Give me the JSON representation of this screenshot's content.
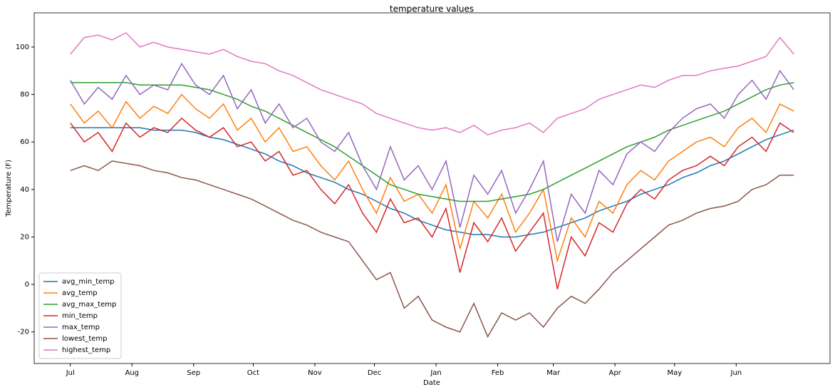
{
  "chart_data": {
    "type": "line",
    "title": "temperature values",
    "x_label": "Date",
    "y_label": "Temperature (F)",
    "x": [
      0,
      7,
      14,
      21,
      28,
      35,
      42,
      49,
      56,
      63,
      70,
      77,
      84,
      91,
      98,
      105,
      112,
      119,
      126,
      133,
      140,
      147,
      154,
      161,
      168,
      175,
      182,
      189,
      196,
      203,
      210,
      217,
      224,
      231,
      238,
      245,
      252,
      259,
      266,
      273,
      280,
      287,
      294,
      301,
      308,
      315,
      322,
      329,
      336,
      343,
      350,
      357,
      364
    ],
    "xlim": [
      -18.2,
      382.2
    ],
    "xticks": [
      {
        "value": 0,
        "label": "Jul"
      },
      {
        "value": 31,
        "label": "Aug"
      },
      {
        "value": 62,
        "label": "Sep"
      },
      {
        "value": 92,
        "label": "Oct"
      },
      {
        "value": 123,
        "label": "Nov"
      },
      {
        "value": 153,
        "label": "Dec"
      },
      {
        "value": 184,
        "label": "Jan"
      },
      {
        "value": 215,
        "label": "Feb"
      },
      {
        "value": 243,
        "label": "Mar"
      },
      {
        "value": 274,
        "label": "Apr"
      },
      {
        "value": 304,
        "label": "May"
      },
      {
        "value": 335,
        "label": "Jun"
      }
    ],
    "ylim": [
      -33.3,
      114.4
    ],
    "yticks": [
      -20,
      0,
      20,
      40,
      60,
      80,
      100
    ],
    "legend": "lower left",
    "series": [
      {
        "name": "avg_min_temp",
        "color": "#1f77b4",
        "values": [
          66,
          66,
          66,
          66,
          66,
          66,
          65,
          65,
          65,
          64,
          62,
          61,
          59,
          57,
          55,
          52,
          50,
          47,
          45,
          43,
          40,
          38,
          35,
          32,
          30,
          27,
          25,
          23,
          22,
          21,
          21,
          20,
          20,
          21,
          22,
          24,
          26,
          28,
          31,
          33,
          35,
          38,
          40,
          42,
          45,
          47,
          50,
          52,
          55,
          58,
          61,
          63,
          65
        ]
      },
      {
        "name": "avg_temp",
        "color": "#ff7f0e",
        "values": [
          76,
          68,
          73,
          66,
          77,
          70,
          75,
          72,
          80,
          74,
          70,
          76,
          65,
          70,
          60,
          66,
          56,
          58,
          50,
          44,
          52,
          40,
          30,
          45,
          35,
          38,
          30,
          42,
          15,
          35,
          28,
          38,
          22,
          30,
          40,
          10,
          28,
          20,
          35,
          30,
          42,
          48,
          44,
          52,
          56,
          60,
          62,
          58,
          66,
          70,
          64,
          76,
          73
        ]
      },
      {
        "name": "avg_max_temp",
        "color": "#2ca02c",
        "values": [
          85,
          85,
          85,
          85,
          85,
          84,
          84,
          84,
          84,
          83,
          82,
          80,
          78,
          75,
          73,
          70,
          67,
          64,
          61,
          58,
          54,
          50,
          46,
          42,
          40,
          38,
          37,
          36,
          35,
          35,
          35,
          36,
          37,
          38,
          40,
          43,
          46,
          49,
          52,
          55,
          58,
          60,
          62,
          65,
          67,
          69,
          71,
          73,
          76,
          79,
          82,
          84,
          85
        ]
      },
      {
        "name": "min_temp",
        "color": "#d62728",
        "values": [
          68,
          60,
          64,
          56,
          68,
          62,
          66,
          64,
          70,
          65,
          62,
          66,
          58,
          60,
          52,
          56,
          46,
          48,
          40,
          34,
          42,
          30,
          22,
          36,
          26,
          28,
          20,
          32,
          5,
          26,
          18,
          28,
          14,
          22,
          30,
          -2,
          20,
          12,
          26,
          22,
          34,
          40,
          36,
          44,
          48,
          50,
          54,
          50,
          58,
          62,
          56,
          68,
          64
        ]
      },
      {
        "name": "max_temp",
        "color": "#9467bd",
        "values": [
          86,
          76,
          83,
          78,
          88,
          80,
          84,
          82,
          93,
          84,
          80,
          88,
          74,
          82,
          68,
          76,
          66,
          70,
          60,
          56,
          64,
          50,
          40,
          58,
          44,
          50,
          40,
          52,
          24,
          46,
          38,
          48,
          30,
          40,
          52,
          18,
          38,
          30,
          48,
          42,
          55,
          60,
          56,
          64,
          70,
          74,
          76,
          70,
          80,
          86,
          78,
          90,
          82
        ]
      },
      {
        "name": "lowest_temp",
        "color": "#8c564b",
        "values": [
          48,
          50,
          48,
          52,
          51,
          50,
          48,
          47,
          45,
          44,
          42,
          40,
          38,
          36,
          33,
          30,
          27,
          25,
          22,
          20,
          18,
          10,
          2,
          5,
          -10,
          -5,
          -15,
          -18,
          -20,
          -8,
          -22,
          -12,
          -15,
          -12,
          -18,
          -10,
          -5,
          -8,
          -2,
          5,
          10,
          15,
          20,
          25,
          27,
          30,
          32,
          33,
          35,
          40,
          42,
          46,
          46
        ]
      },
      {
        "name": "highest_temp",
        "color": "#e377c2",
        "values": [
          97,
          104,
          105,
          103,
          106,
          100,
          102,
          100,
          99,
          98,
          97,
          99,
          96,
          94,
          93,
          90,
          88,
          85,
          82,
          80,
          78,
          76,
          72,
          70,
          68,
          66,
          65,
          66,
          64,
          67,
          63,
          65,
          66,
          68,
          64,
          70,
          72,
          74,
          78,
          80,
          82,
          84,
          83,
          86,
          88,
          88,
          90,
          91,
          92,
          94,
          96,
          104,
          97
        ]
      }
    ]
  }
}
